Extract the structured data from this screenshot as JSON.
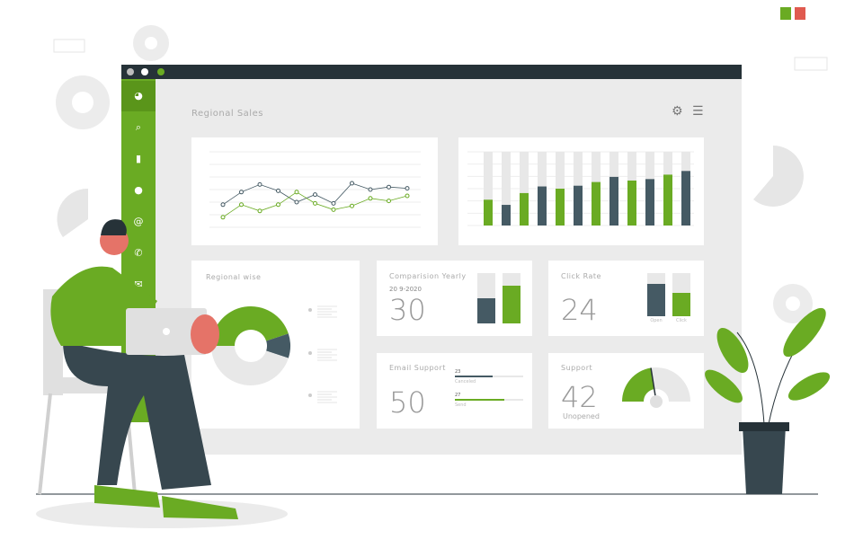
{
  "window": {
    "dots": [
      "#bdbdbd",
      "#ffffff",
      "#6aab23"
    ]
  },
  "sidebar": {
    "items": [
      {
        "icon": "dashboard-icon",
        "glyph": "◕"
      },
      {
        "icon": "search-icon",
        "glyph": "⌕"
      },
      {
        "icon": "bar-chart-icon",
        "glyph": "▮"
      },
      {
        "icon": "chat-icon",
        "glyph": "●"
      },
      {
        "icon": "at-icon",
        "glyph": "@"
      },
      {
        "icon": "phone-icon",
        "glyph": "✆"
      },
      {
        "icon": "mail-icon",
        "glyph": "✉"
      }
    ]
  },
  "header": {
    "title": "Regional Sales",
    "settings_icon": "gear-icon",
    "menu_icon": "menu-icon"
  },
  "colors": {
    "green": "#6aab23",
    "dark": "#455a64",
    "light": "#e8e8e8"
  },
  "regional": {
    "title": "Regional wise",
    "donut": [
      {
        "color": "green",
        "value": 45
      },
      {
        "color": "dark",
        "value": 10
      },
      {
        "color": "light",
        "value": 45
      }
    ]
  },
  "comparison": {
    "title": "Comparision Yearly",
    "subtitle": "20 9-2020",
    "value": "30",
    "bars": [
      0.5,
      0.75
    ]
  },
  "click_rate": {
    "title": "Click Rate",
    "value": "24",
    "bars": [
      {
        "label": "Open",
        "value": 0.75
      },
      {
        "label": "Click",
        "value": 0.55
      }
    ]
  },
  "email": {
    "title": "Email Support",
    "value": "50",
    "bars": [
      {
        "count": "23",
        "label": "Canceled",
        "value": 0.55
      },
      {
        "count": "27",
        "label": "Send",
        "value": 0.72
      }
    ]
  },
  "support": {
    "title": "Support",
    "value": "42",
    "label": "Unopened",
    "gauge": 0.45
  },
  "chart_data": [
    {
      "type": "line",
      "ylim": [
        0,
        6
      ],
      "grid": true,
      "series": [
        {
          "color": "#455a64",
          "values": [
            1.8,
            2.8,
            3.4,
            2.9,
            2.0,
            2.6,
            1.9,
            3.5,
            3.0,
            3.2,
            3.1
          ]
        },
        {
          "color": "#6aab23",
          "values": [
            0.8,
            1.8,
            1.3,
            1.8,
            2.8,
            1.9,
            1.4,
            1.7,
            2.3,
            2.1,
            2.5
          ]
        }
      ]
    },
    {
      "type": "bar",
      "ylim": [
        0,
        1
      ],
      "grid": true,
      "values": [
        0.35,
        0.28,
        0.44,
        0.53,
        0.5,
        0.54,
        0.59,
        0.66,
        0.61,
        0.63,
        0.69,
        0.74
      ],
      "colors": [
        "#6aab23",
        "#455a64",
        "#6aab23",
        "#455a64",
        "#6aab23",
        "#455a64",
        "#6aab23",
        "#455a64",
        "#6aab23",
        "#455a64",
        "#6aab23",
        "#455a64"
      ]
    }
  ]
}
